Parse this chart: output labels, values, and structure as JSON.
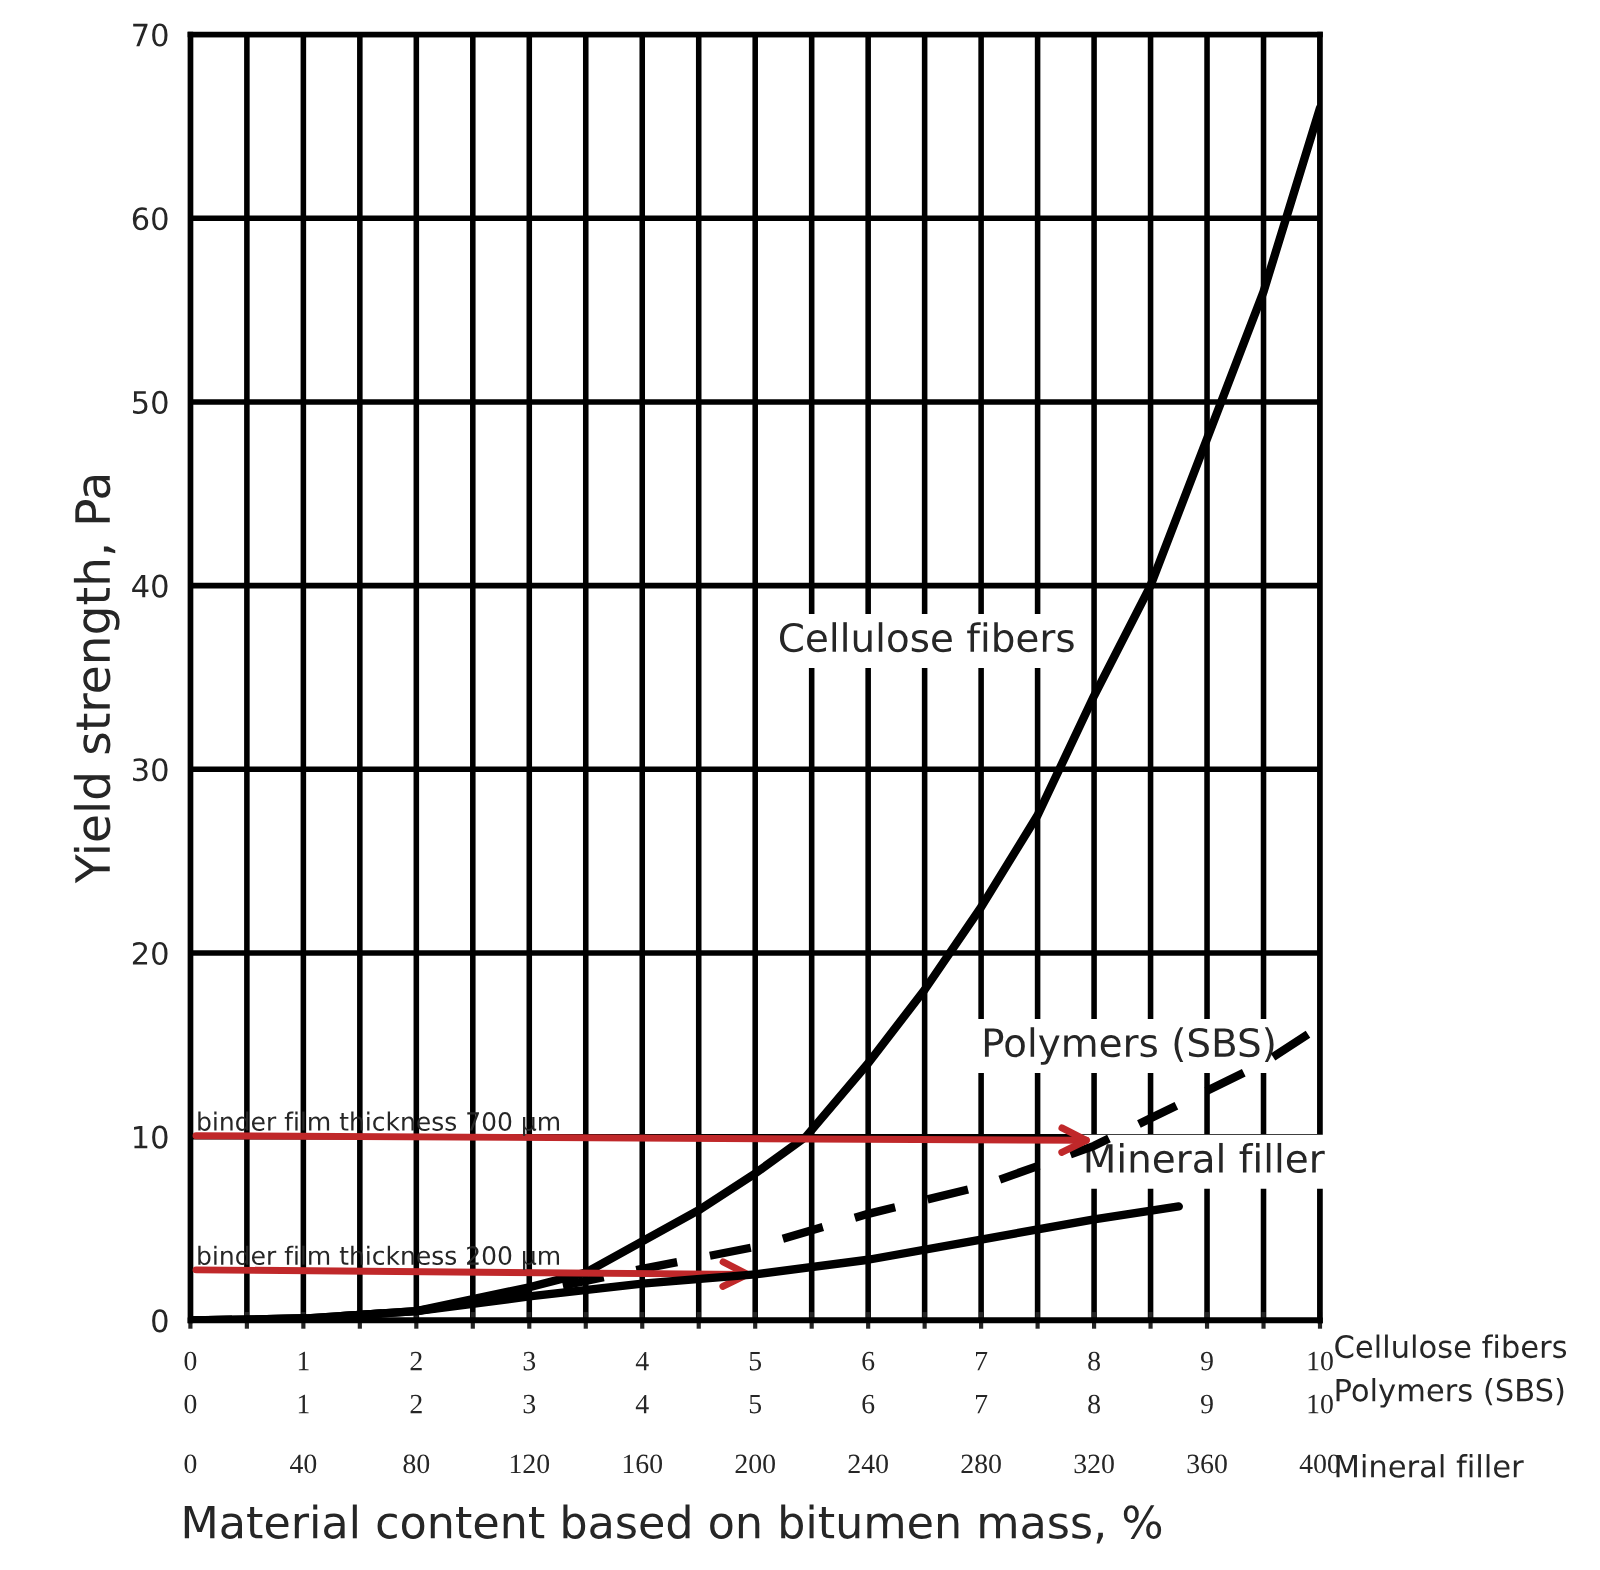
{
  "chart_data": {
    "type": "line",
    "ylabel": "Yield strength, Pa",
    "xlabel": "Cellulose fibers\nPolymers (SBS)",
    "x2label": "Mineral filler",
    "annotations": [
      "Material content based on bitumen mass, %",
      "0",
      "1",
      "2",
      "3",
      "4",
      "5",
      "6",
      "7",
      "8",
      "9",
      "10",
      {
        "text": "binder film thickness 700 µm",
        "x": 8,
        "y": 9.8
      },
      {
        "text": "binder film thickness 200 µm",
        "x": 5,
        "y": 2.5
      }
    ],
    "series": [
      {
        "name": "Cellulose fibers",
        "color": "#000000",
        "line_style": "solid",
        "x": [
          0,
          1,
          2,
          3,
          3.5,
          4,
          4.5,
          5,
          5.45,
          6,
          6.5,
          7,
          7.5,
          8,
          8.5,
          9,
          9.5,
          10
        ],
        "values": [
          0,
          0.1,
          0.5,
          1.8,
          2.6,
          4.3,
          6,
          8,
          10,
          14,
          18,
          22.5,
          27.5,
          34,
          40,
          48,
          56,
          66
        ]
      },
      {
        "name": "Polymers (SBS)",
        "color": "#000000",
        "line_style": "dashed",
        "x": [
          0,
          1,
          2,
          3,
          4,
          5,
          6,
          7,
          8,
          8.5,
          9,
          9.5,
          10
        ],
        "values": [
          0,
          0.1,
          0.5,
          1.5,
          2.8,
          4,
          5.8,
          7.3,
          9.5,
          11,
          12.5,
          14,
          16
        ]
      },
      {
        "name": "Mineral filler",
        "color": "#000000",
        "line_style": "solid",
        "axis": "x2",
        "x": [
          0,
          40,
          80,
          120,
          160,
          200,
          240,
          280,
          320,
          350
        ],
        "values": [
          0,
          0.1,
          0.5,
          1.3,
          2,
          2.5,
          3.3,
          4.4,
          5.5,
          6.2
        ]
      }
    ],
    "xlim": [
      0,
      10
    ],
    "xticks": [
      0,
      {
        "value": 0.5,
        "label": null
      },
      1,
      {
        "value": 1.5,
        "label": null
      },
      2,
      {
        "value": 2.5,
        "label": null
      },
      3,
      {
        "value": 3.5,
        "label": null
      },
      4,
      {
        "value": 4.5,
        "label": null
      },
      5,
      {
        "value": 5.5,
        "label": null
      },
      6,
      {
        "value": 6.5,
        "label": null
      },
      7,
      {
        "value": 7.5,
        "label": null
      },
      8,
      {
        "value": 8.5,
        "label": null
      },
      9,
      {
        "value": 9.5,
        "label": null
      },
      10
    ],
    "x2lim": [
      0,
      400
    ],
    "x2ticks": [
      0,
      40,
      80,
      120,
      160,
      200,
      240,
      280,
      320,
      360,
      400
    ],
    "ylim": [
      0,
      70
    ],
    "yticks": [
      0,
      10,
      20,
      30,
      40,
      50,
      60,
      70
    ],
    "grid": true,
    "marker": "none"
  }
}
